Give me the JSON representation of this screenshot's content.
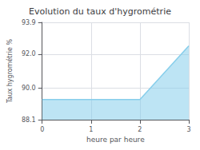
{
  "chart_data": {
    "type": "area",
    "title": "Evolution du taux d'hygrométrie",
    "xlabel": "heure par heure",
    "ylabel": "Taux hygrométrie %",
    "x": [
      0,
      2,
      3
    ],
    "values": [
      89.3,
      89.3,
      92.5
    ],
    "color": "#87CEEB",
    "xlim": [
      0,
      3
    ],
    "xticks": [
      0,
      1,
      2,
      3
    ],
    "ylim": [
      88.1,
      93.9
    ],
    "yticks": [
      88.1,
      {
        "value": 90.0,
        "label": "90.0"
      },
      {
        "value": 92.0,
        "label": "92.0"
      },
      93.9
    ],
    "grid": true
  }
}
